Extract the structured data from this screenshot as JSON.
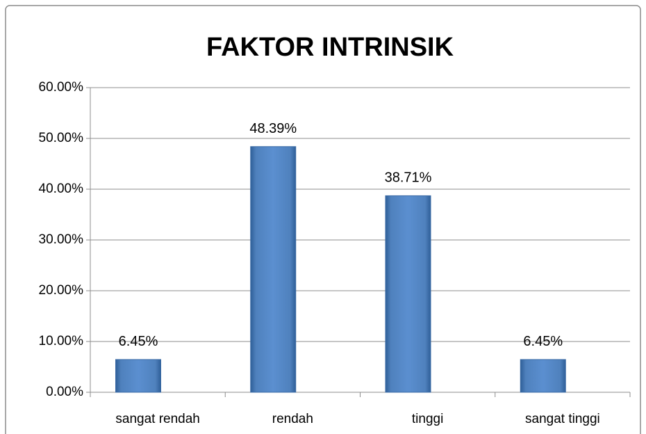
{
  "chart_data": {
    "type": "bar",
    "title": "FAKTOR INTRINSIK",
    "categories": [
      "sangat rendah",
      "rendah",
      "tinggi",
      "sangat tinggi"
    ],
    "values": [
      6.45,
      48.39,
      38.71,
      6.45
    ],
    "value_labels": [
      "6.45%",
      "48.39%",
      "38.71%",
      "6.45%"
    ],
    "color": "#4f81bd",
    "ylim": [
      0,
      60
    ],
    "yticks": [
      {
        "value": 0,
        "label": "0.00%"
      },
      {
        "value": 10,
        "label": "10.00%"
      },
      {
        "value": 20,
        "label": "20.00%"
      },
      {
        "value": 30,
        "label": "30.00%"
      },
      {
        "value": 40,
        "label": "40.00%"
      },
      {
        "value": 50,
        "label": "50.00%"
      },
      {
        "value": 60,
        "label": "60.00%"
      }
    ],
    "grid": true
  }
}
